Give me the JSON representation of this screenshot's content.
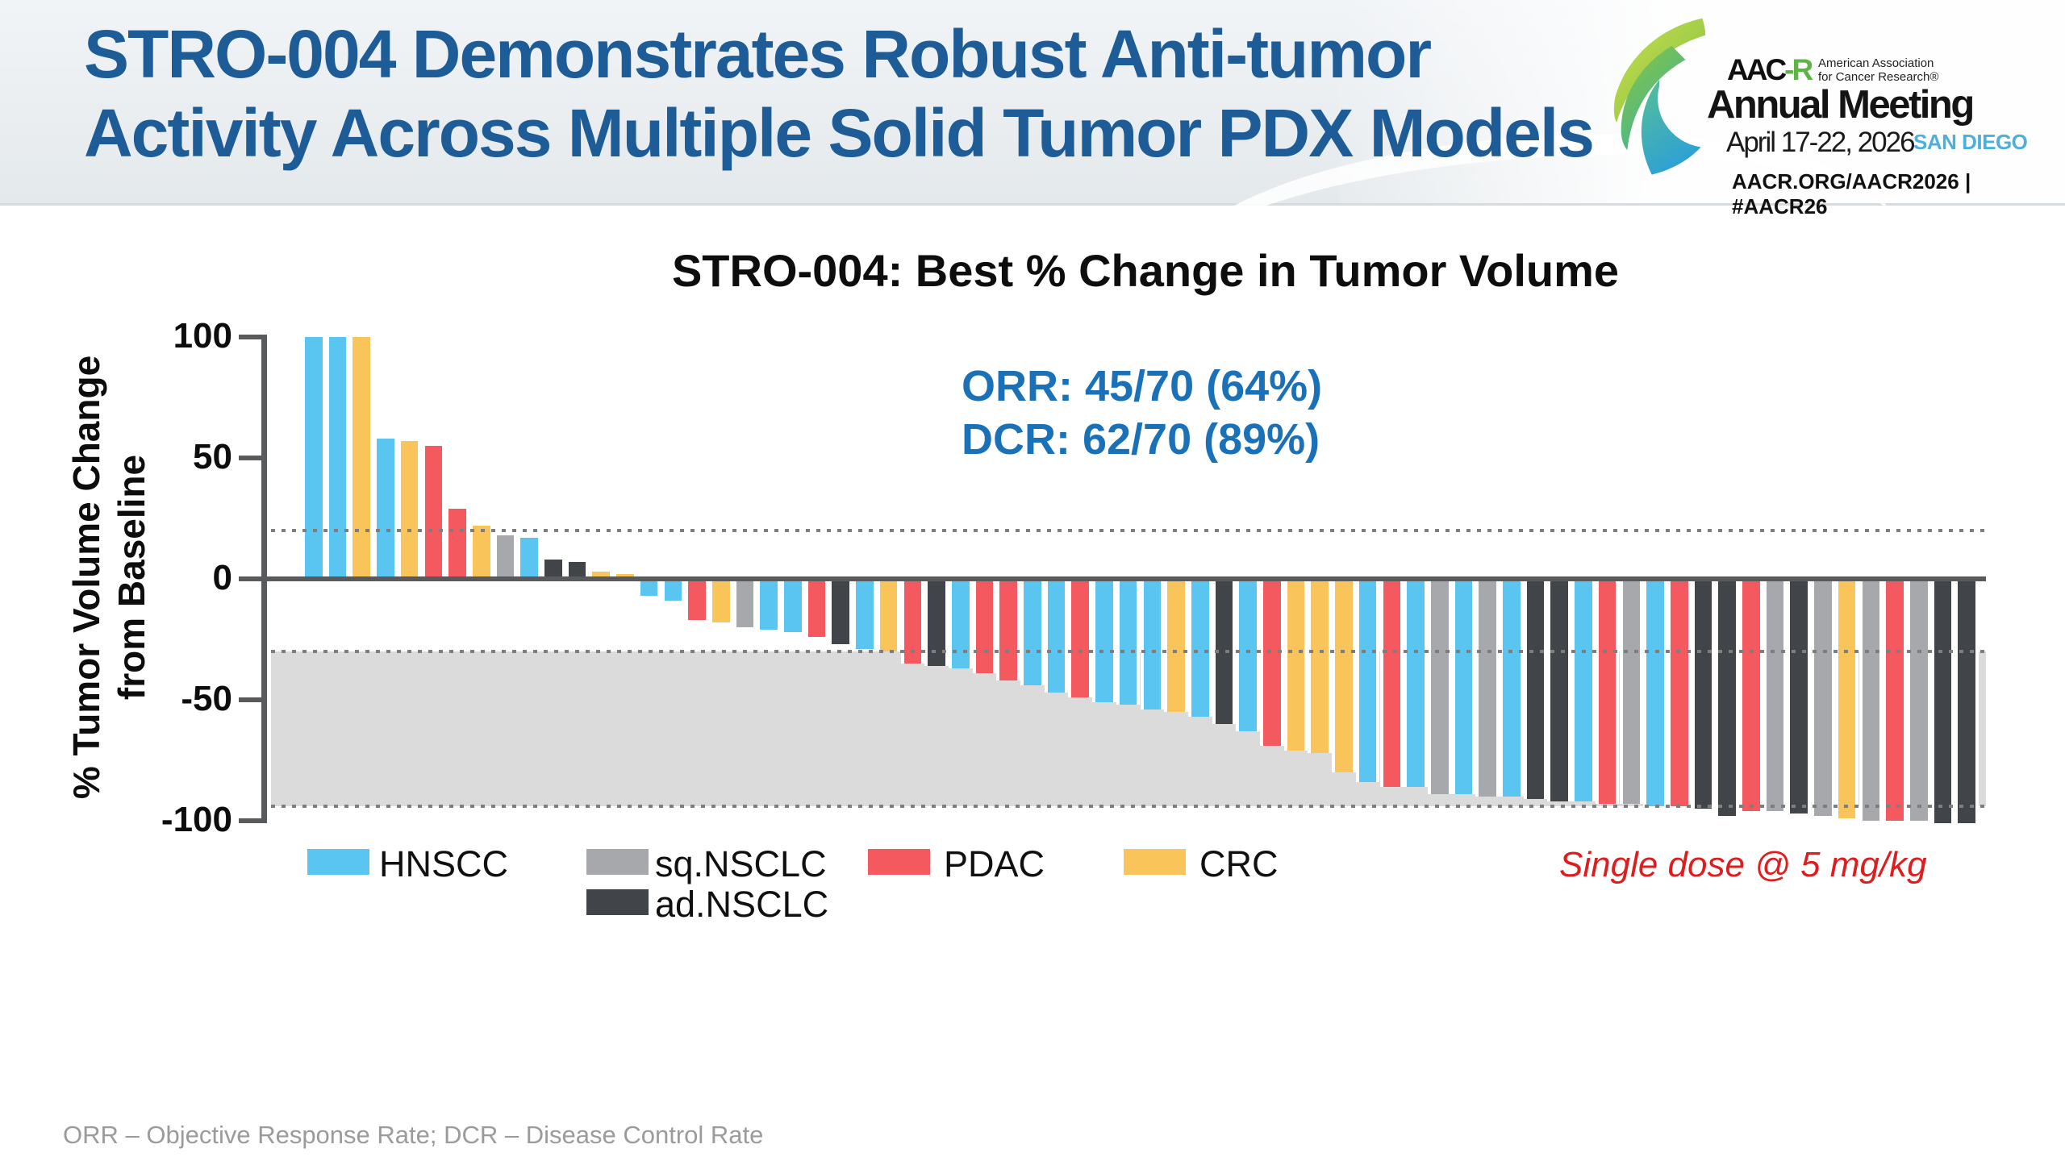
{
  "header": {
    "title_line1": "STRO-004 Demonstrates Robust Anti-tumor",
    "title_line2": "Activity Across Multiple Solid Tumor PDX Models",
    "logo": {
      "acronym_black": "AAC",
      "acronym_green": "-R",
      "association_line1": "American Association",
      "association_line2": "for Cancer Research®",
      "event_name": "Annual Meeting",
      "event_dates": "April 17-22, 2026",
      "event_city": "SAN DIEGO",
      "tagline": "AACR.ORG/AACR2026  |  #AACR26"
    }
  },
  "chart_data": {
    "type": "bar",
    "title": "STRO-004: Best % Change in Tumor Volume",
    "ylabel_line1": "% Tumor Volume Change",
    "ylabel_line2": "from Baseline",
    "ylim": [
      -100,
      100
    ],
    "yticks": [
      100,
      50,
      0,
      -50,
      -100
    ],
    "grid": false,
    "legend_position": "bottom",
    "reference_lines": [
      20,
      -30,
      -94
    ],
    "shaded_band": [
      -30,
      -94
    ],
    "annotations": {
      "orr": "ORR: 45/70 (64%)",
      "dcr": "DCR: 62/70 (89%)",
      "dose_note": "Single dose @ 5 mg/kg"
    },
    "legend": [
      {
        "label": "HNSCC",
        "color": "#5BC5F2"
      },
      {
        "label": "sq.NSCLC",
        "color": "#A6A8AB"
      },
      {
        "label": "ad.NSCLC",
        "color": "#414549"
      },
      {
        "label": "PDAC",
        "color": "#F4595F"
      },
      {
        "label": "CRC",
        "color": "#F9C45A"
      }
    ],
    "bars": [
      {
        "group": "HNSCC",
        "value": 100
      },
      {
        "group": "HNSCC",
        "value": 100
      },
      {
        "group": "CRC",
        "value": 100
      },
      {
        "group": "HNSCC",
        "value": 58
      },
      {
        "group": "CRC",
        "value": 57
      },
      {
        "group": "PDAC",
        "value": 55
      },
      {
        "group": "PDAC",
        "value": 29
      },
      {
        "group": "CRC",
        "value": 22
      },
      {
        "group": "sq.NSCLC",
        "value": 18
      },
      {
        "group": "HNSCC",
        "value": 17
      },
      {
        "group": "ad.NSCLC",
        "value": 8
      },
      {
        "group": "ad.NSCLC",
        "value": 7
      },
      {
        "group": "CRC",
        "value": 3
      },
      {
        "group": "CRC",
        "value": 2
      },
      {
        "group": "HNSCC",
        "value": -6
      },
      {
        "group": "HNSCC",
        "value": -8
      },
      {
        "group": "PDAC",
        "value": -16
      },
      {
        "group": "CRC",
        "value": -17
      },
      {
        "group": "sq.NSCLC",
        "value": -19
      },
      {
        "group": "HNSCC",
        "value": -20
      },
      {
        "group": "HNSCC",
        "value": -21
      },
      {
        "group": "PDAC",
        "value": -23
      },
      {
        "group": "ad.NSCLC",
        "value": -26
      },
      {
        "group": "HNSCC",
        "value": -28
      },
      {
        "group": "CRC",
        "value": -29
      },
      {
        "group": "PDAC",
        "value": -34
      },
      {
        "group": "ad.NSCLC",
        "value": -35
      },
      {
        "group": "HNSCC",
        "value": -36
      },
      {
        "group": "PDAC",
        "value": -38
      },
      {
        "group": "PDAC",
        "value": -41
      },
      {
        "group": "HNSCC",
        "value": -43
      },
      {
        "group": "HNSCC",
        "value": -46
      },
      {
        "group": "PDAC",
        "value": -48
      },
      {
        "group": "HNSCC",
        "value": -50
      },
      {
        "group": "HNSCC",
        "value": -51
      },
      {
        "group": "HNSCC",
        "value": -53
      },
      {
        "group": "CRC",
        "value": -54
      },
      {
        "group": "HNSCC",
        "value": -56
      },
      {
        "group": "ad.NSCLC",
        "value": -59
      },
      {
        "group": "HNSCC",
        "value": -62
      },
      {
        "group": "PDAC",
        "value": -68
      },
      {
        "group": "CRC",
        "value": -70
      },
      {
        "group": "CRC",
        "value": -71
      },
      {
        "group": "CRC",
        "value": -79
      },
      {
        "group": "HNSCC",
        "value": -83
      },
      {
        "group": "PDAC",
        "value": -85
      },
      {
        "group": "HNSCC",
        "value": -85
      },
      {
        "group": "sq.NSCLC",
        "value": -88
      },
      {
        "group": "HNSCC",
        "value": -88
      },
      {
        "group": "sq.NSCLC",
        "value": -89
      },
      {
        "group": "HNSCC",
        "value": -89
      },
      {
        "group": "ad.NSCLC",
        "value": -90
      },
      {
        "group": "ad.NSCLC",
        "value": -91
      },
      {
        "group": "HNSCC",
        "value": -91
      },
      {
        "group": "PDAC",
        "value": -92
      },
      {
        "group": "sq.NSCLC",
        "value": -92
      },
      {
        "group": "HNSCC",
        "value": -93
      },
      {
        "group": "PDAC",
        "value": -93
      },
      {
        "group": "ad.NSCLC",
        "value": -94
      },
      {
        "group": "ad.NSCLC",
        "value": -97
      },
      {
        "group": "PDAC",
        "value": -95
      },
      {
        "group": "sq.NSCLC",
        "value": -95
      },
      {
        "group": "ad.NSCLC",
        "value": -96
      },
      {
        "group": "sq.NSCLC",
        "value": -97
      },
      {
        "group": "CRC",
        "value": -98
      },
      {
        "group": "sq.NSCLC",
        "value": -99
      },
      {
        "group": "PDAC",
        "value": -99
      },
      {
        "group": "sq.NSCLC",
        "value": -99
      },
      {
        "group": "ad.NSCLC",
        "value": -100
      },
      {
        "group": "ad.NSCLC",
        "value": -100
      }
    ]
  },
  "footer": {
    "note": "ORR – Objective Response Rate; DCR – Disease Control Rate"
  }
}
